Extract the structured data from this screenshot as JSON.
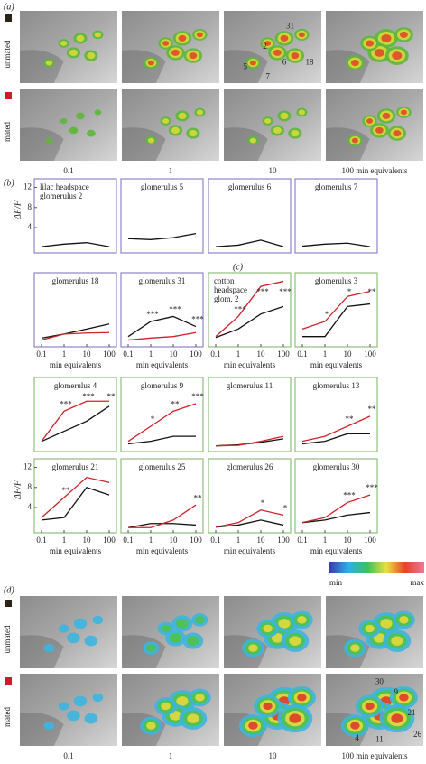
{
  "panel_a": {
    "label": "(a)",
    "rows": [
      "unmated",
      "mated"
    ],
    "columns": [
      "0.1",
      "1",
      "10",
      "100 min equivalents"
    ],
    "glomeruli": [
      "31",
      "2",
      "5",
      "7",
      "6",
      "18"
    ]
  },
  "panel_b_label": "(b)",
  "panel_c_label": "(c)",
  "chart_data": [
    {
      "type": "line",
      "title": [
        "lilac headspace",
        "glomerulus 2"
      ],
      "frame_color": "#8f86c8",
      "categories": [
        "0.1",
        "1",
        "10",
        "100"
      ],
      "ylim": [
        -0.5,
        13
      ],
      "yticks": [
        4,
        8,
        12
      ],
      "ylabel": "ΔF/F",
      "series": [
        {
          "color": "#111111",
          "values": [
            0.2,
            0.7,
            1.0,
            0.2
          ]
        }
      ]
    },
    {
      "type": "line",
      "title": [
        "glomerulus 5"
      ],
      "frame_color": "#8f86c8",
      "categories": [
        "0.1",
        "1",
        "10",
        "100"
      ],
      "ylim": [
        -0.5,
        13
      ],
      "series": [
        {
          "color": "#111111",
          "values": [
            1.8,
            1.6,
            2.0,
            2.8
          ]
        }
      ]
    },
    {
      "type": "line",
      "title": [
        "glomerulus 6"
      ],
      "frame_color": "#8f86c8",
      "categories": [
        "0.1",
        "1",
        "10",
        "100"
      ],
      "ylim": [
        -0.5,
        13
      ],
      "series": [
        {
          "color": "#111111",
          "values": [
            0.2,
            0.5,
            1.5,
            0.2
          ]
        }
      ]
    },
    {
      "type": "line",
      "title": [
        "glomerulus 7"
      ],
      "frame_color": "#8f86c8",
      "categories": [
        "0.1",
        "1",
        "10",
        "100"
      ],
      "ylim": [
        -0.5,
        13
      ],
      "series": [
        {
          "color": "#111111",
          "values": [
            0.3,
            0.7,
            0.9,
            0.2
          ]
        }
      ]
    },
    {
      "type": "line",
      "title": [
        "glomerulus 18"
      ],
      "frame_color": "#8f86c8",
      "categories": [
        "0.1",
        "1",
        "10",
        "100"
      ],
      "show_xticks": true,
      "xlabel": "min equivalents",
      "ylim": [
        -0.5,
        13
      ],
      "series": [
        {
          "color": "#111111",
          "values": [
            0.7,
            1.5,
            2.5,
            3.5
          ]
        },
        {
          "color": "#d0202a",
          "values": [
            0.3,
            1.5,
            1.7,
            1.8
          ]
        }
      ]
    },
    {
      "type": "line",
      "title": [
        "glomerulus 31"
      ],
      "frame_color": "#8f86c8",
      "categories": [
        "0.1",
        "1",
        "10",
        "100"
      ],
      "show_xticks": true,
      "xlabel": "min equivalents",
      "ylim": [
        -0.5,
        13
      ],
      "stars": [
        null,
        "***",
        "***",
        "***"
      ],
      "series": [
        {
          "color": "#111111",
          "values": [
            1,
            4,
            5,
            3
          ]
        },
        {
          "color": "#d0202a",
          "values": [
            0.3,
            0.7,
            1,
            1.8
          ]
        }
      ]
    },
    {
      "type": "line",
      "title": [
        "cotton",
        "headspace",
        "glom. 2"
      ],
      "frame_color": "#8fc07f",
      "categories": [
        "0.1",
        "1",
        "10",
        "100"
      ],
      "show_xticks": true,
      "xlabel": "min equivalents",
      "ylim": [
        -0.5,
        13
      ],
      "stars": [
        null,
        "***",
        "***",
        "***"
      ],
      "series": [
        {
          "color": "#111111",
          "values": [
            0.8,
            2.5,
            5.5,
            7
          ]
        },
        {
          "color": "#d0202a",
          "values": [
            1,
            5,
            11,
            12
          ]
        }
      ]
    },
    {
      "type": "line",
      "title": [
        "glomerulus 3"
      ],
      "frame_color": "#8fc07f",
      "categories": [
        "0.1",
        "1",
        "10",
        "100"
      ],
      "show_xticks": true,
      "xlabel": "min equivalents",
      "ylim": [
        -0.5,
        13
      ],
      "stars": [
        null,
        "*",
        "*",
        "**"
      ],
      "series": [
        {
          "color": "#111111",
          "values": [
            1,
            1,
            7,
            7.5
          ]
        },
        {
          "color": "#d0202a",
          "values": [
            2.5,
            4,
            9,
            10
          ]
        }
      ]
    },
    {
      "type": "line",
      "title": [
        "glomerulus 4"
      ],
      "frame_color": "#8fc07f",
      "categories": [
        "0.1",
        "1",
        "10",
        "100"
      ],
      "ylim": [
        -0.5,
        13
      ],
      "stars": [
        null,
        "***",
        "***",
        "**"
      ],
      "series": [
        {
          "color": "#111111",
          "values": [
            1,
            3,
            5,
            8
          ]
        },
        {
          "color": "#d0202a",
          "values": [
            1,
            7,
            9,
            9
          ]
        }
      ]
    },
    {
      "type": "line",
      "title": [
        "glomerulus 9"
      ],
      "frame_color": "#8fc07f",
      "categories": [
        "0.1",
        "1",
        "10",
        "100"
      ],
      "ylim": [
        -0.5,
        13
      ],
      "stars": [
        null,
        "*",
        "**",
        "***"
      ],
      "series": [
        {
          "color": "#111111",
          "values": [
            0.5,
            1,
            2,
            2
          ]
        },
        {
          "color": "#d0202a",
          "values": [
            1,
            4,
            7,
            8.5
          ]
        }
      ]
    },
    {
      "type": "line",
      "title": [
        "glomerulus 11"
      ],
      "frame_color": "#8fc07f",
      "categories": [
        "0.1",
        "1",
        "10",
        "100"
      ],
      "ylim": [
        -0.5,
        13
      ],
      "series": [
        {
          "color": "#111111",
          "values": [
            0.1,
            0.3,
            0.8,
            1.5
          ]
        },
        {
          "color": "#d0202a",
          "values": [
            0.1,
            0.2,
            1,
            2
          ]
        }
      ]
    },
    {
      "type": "line",
      "title": [
        "glomerulus 13"
      ],
      "frame_color": "#8fc07f",
      "categories": [
        "0.1",
        "1",
        "10",
        "100"
      ],
      "ylim": [
        -0.5,
        13
      ],
      "stars": [
        null,
        null,
        "**",
        "**"
      ],
      "series": [
        {
          "color": "#111111",
          "values": [
            0.5,
            1,
            2.5,
            2.5
          ]
        },
        {
          "color": "#d0202a",
          "values": [
            1,
            2,
            4,
            6
          ]
        }
      ]
    },
    {
      "type": "line",
      "title": [
        "glomerulus 21"
      ],
      "frame_color": "#8fc07f",
      "categories": [
        "0.1",
        "1",
        "10",
        "100"
      ],
      "show_xticks": true,
      "xlabel": "min equivalents",
      "ylim": [
        -0.5,
        13
      ],
      "yticks": [
        4,
        8,
        12
      ],
      "ylabel": "ΔF/F",
      "stars": [
        null,
        "**",
        null,
        null
      ],
      "series": [
        {
          "color": "#111111",
          "values": [
            1.5,
            2,
            8,
            6.5
          ]
        },
        {
          "color": "#d0202a",
          "values": [
            2,
            6,
            10,
            9
          ]
        }
      ]
    },
    {
      "type": "line",
      "title": [
        "glomerulus 25"
      ],
      "frame_color": "#8fc07f",
      "categories": [
        "0.1",
        "1",
        "10",
        "100"
      ],
      "show_xticks": true,
      "xlabel": "min equivalents",
      "ylim": [
        -0.5,
        13
      ],
      "stars": [
        null,
        null,
        null,
        "**"
      ],
      "series": [
        {
          "color": "#111111",
          "values": [
            0,
            0.8,
            0.8,
            0.5
          ]
        },
        {
          "color": "#d0202a",
          "values": [
            0,
            0,
            1.5,
            4.5
          ]
        }
      ]
    },
    {
      "type": "line",
      "title": [
        "glomerulus 26"
      ],
      "frame_color": "#8fc07f",
      "categories": [
        "0.1",
        "1",
        "10",
        "100"
      ],
      "show_xticks": true,
      "xlabel": "min equivalents",
      "ylim": [
        -0.5,
        13
      ],
      "stars": [
        null,
        null,
        "*",
        "*"
      ],
      "series": [
        {
          "color": "#111111",
          "values": [
            0.1,
            0.5,
            1.5,
            0.5
          ]
        },
        {
          "color": "#d0202a",
          "values": [
            0.1,
            1,
            3.5,
            2.5
          ]
        }
      ]
    },
    {
      "type": "line",
      "title": [
        "glomerulus 30"
      ],
      "frame_color": "#8fc07f",
      "categories": [
        "0.1",
        "1",
        "10",
        "100"
      ],
      "show_xticks": true,
      "xlabel": "min equivalents",
      "ylim": [
        -0.5,
        13
      ],
      "stars": [
        null,
        null,
        "***",
        "***"
      ],
      "series": [
        {
          "color": "#111111",
          "values": [
            1,
            1.5,
            2.5,
            3
          ]
        },
        {
          "color": "#d0202a",
          "values": [
            1,
            2,
            5,
            6.5
          ]
        }
      ]
    }
  ],
  "colorbar": {
    "min_label": "min",
    "max_label": "max",
    "colors": [
      "#3a3aa8",
      "#2fb0e8",
      "#3cc060",
      "#e8e040",
      "#e8402a",
      "#e87a9a"
    ]
  },
  "panel_d": {
    "label": "(d)",
    "rows": [
      "unmated",
      "mated"
    ],
    "columns": [
      "0.1",
      "1",
      "10",
      "100 min equivalents"
    ],
    "glomeruli": [
      "30",
      "9",
      "21",
      "26",
      "4",
      "11"
    ]
  }
}
